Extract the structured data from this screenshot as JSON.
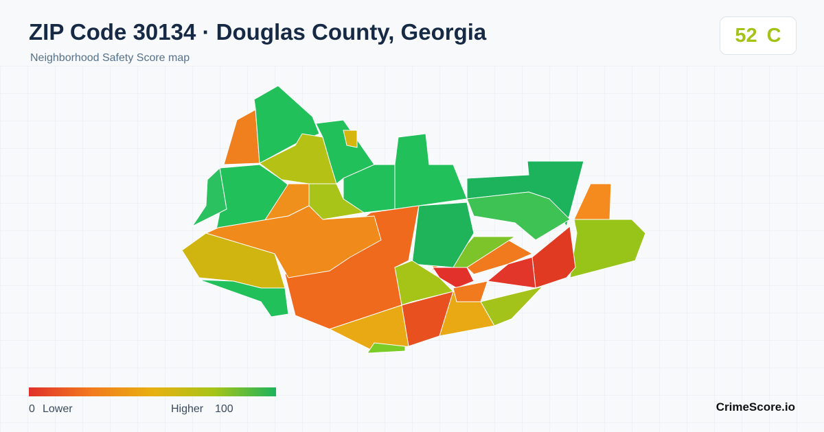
{
  "header": {
    "title": "ZIP Code 30134 · Douglas County, Georgia",
    "subtitle": "Neighborhood Safety Score map"
  },
  "score": {
    "value": 52,
    "grade": "C"
  },
  "legend": {
    "min": 0,
    "min_label": "Lower",
    "max_label": "Higher",
    "max": 100
  },
  "brand": "CrimeScore.io"
}
